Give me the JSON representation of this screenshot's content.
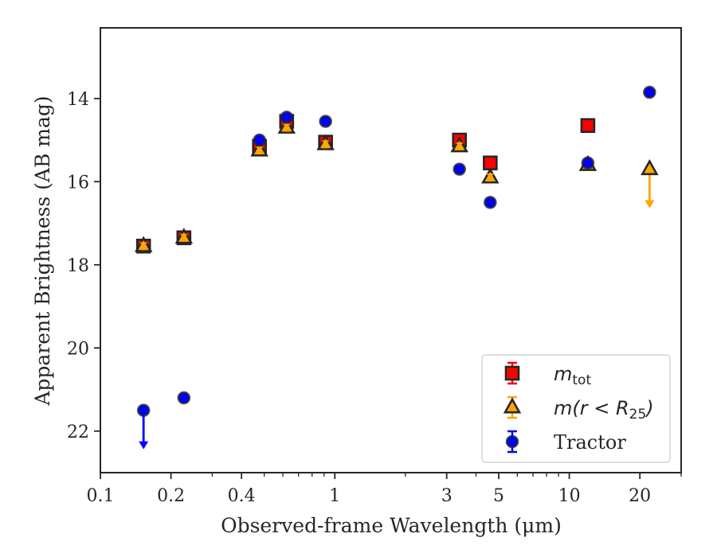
{
  "chart_data": {
    "type": "scatter",
    "xlabel": "Observed-frame Wavelength (μm)",
    "ylabel": "Apparent Brightness (AB mag)",
    "xscale": "log",
    "xlim": [
      0.1,
      30
    ],
    "ylim": [
      23,
      12.3
    ],
    "y_inverted": true,
    "x_ticks": [
      {
        "value": 0.1,
        "label": "0.1"
      },
      {
        "value": 0.2,
        "label": "0.2"
      },
      {
        "value": 0.4,
        "label": "0.4"
      },
      {
        "value": 1,
        "label": "1"
      },
      {
        "value": 3,
        "label": "3"
      },
      {
        "value": 5,
        "label": "5"
      },
      {
        "value": 10,
        "label": "10"
      },
      {
        "value": 20,
        "label": "20"
      }
    ],
    "x_minor_ticks": [
      0.3,
      0.5,
      0.6,
      0.7,
      0.8,
      0.9,
      2,
      4,
      6,
      7,
      8,
      9,
      30
    ],
    "y_ticks": [
      {
        "value": 14,
        "label": "14"
      },
      {
        "value": 16,
        "label": "16"
      },
      {
        "value": 18,
        "label": "18"
      },
      {
        "value": 20,
        "label": "20"
      },
      {
        "value": 22,
        "label": "22"
      }
    ],
    "grid": false,
    "legend_position": "lower-right",
    "series": [
      {
        "key": "mtot",
        "marker": "square",
        "color": "#ff0000",
        "points": [
          {
            "x": 0.1528,
            "y": 17.55
          },
          {
            "x": 0.2271,
            "y": 17.35
          },
          {
            "x": 0.477,
            "y": 15.15
          },
          {
            "x": 0.623,
            "y": 14.55
          },
          {
            "x": 0.913,
            "y": 15.05
          },
          {
            "x": 3.4,
            "y": 15.0
          },
          {
            "x": 4.6,
            "y": 15.55
          },
          {
            "x": 12.0,
            "y": 14.65
          }
        ],
        "upper_limits": []
      },
      {
        "key": "mr25",
        "marker": "triangle",
        "color": "#ffa500",
        "points": [
          {
            "x": 0.1528,
            "y": 17.55
          },
          {
            "x": 0.2271,
            "y": 17.35
          },
          {
            "x": 0.477,
            "y": 15.25
          },
          {
            "x": 0.623,
            "y": 14.7
          },
          {
            "x": 0.913,
            "y": 15.1
          },
          {
            "x": 3.4,
            "y": 15.15
          },
          {
            "x": 4.6,
            "y": 15.9
          },
          {
            "x": 12.0,
            "y": 15.6
          }
        ],
        "upper_limits": [
          {
            "x": 22.0,
            "y": 15.7,
            "arrow_to": 16.6
          }
        ]
      },
      {
        "key": "tractor",
        "marker": "circle",
        "color": "#0000ff",
        "points": [
          {
            "x": 0.2271,
            "y": 21.2
          },
          {
            "x": 0.477,
            "y": 15.0
          },
          {
            "x": 0.623,
            "y": 14.45
          },
          {
            "x": 0.913,
            "y": 14.55
          },
          {
            "x": 3.4,
            "y": 15.7
          },
          {
            "x": 4.6,
            "y": 16.5
          },
          {
            "x": 12.0,
            "y": 15.55
          },
          {
            "x": 22.0,
            "y": 13.85
          }
        ],
        "upper_limits": [
          {
            "x": 0.1528,
            "y": 21.5,
            "arrow_to": 22.4
          }
        ]
      }
    ],
    "legend": [
      {
        "key": "mtot",
        "label": "m",
        "subscript": "tot",
        "marker": "square",
        "color": "#ff0000"
      },
      {
        "key": "mr25",
        "label": "m(r < R",
        "subscript": "25",
        "suffix": ")",
        "marker": "triangle",
        "color": "#ffa500"
      },
      {
        "key": "tractor",
        "label": "Tractor",
        "marker": "circle",
        "color": "#0000ff"
      }
    ]
  }
}
